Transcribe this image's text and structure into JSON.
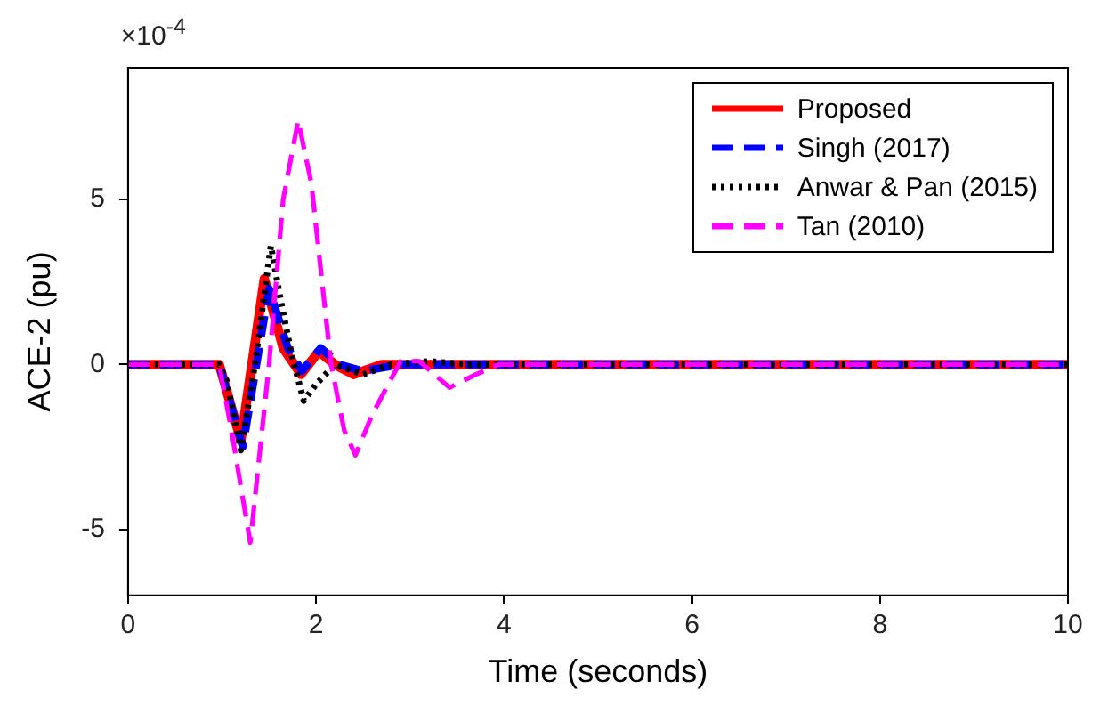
{
  "chart_data": {
    "type": "line",
    "xlabel": "Time (seconds)",
    "ylabel": "ACE-2 (pu)",
    "annotations": [
      "×10$^{-4}$"
    ],
    "xlim": [
      0,
      10
    ],
    "xticks": [
      0,
      2,
      4,
      6,
      8,
      10
    ],
    "ylim": [
      -7,
      9
    ],
    "yticks": [
      -5,
      0,
      5
    ],
    "grid": false,
    "legend": "top right",
    "marker": "none",
    "series": [
      {
        "name": "Proposed",
        "color": "#ff0000",
        "line_style": "solid",
        "x": [
          0,
          0.97,
          1.2,
          1.45,
          1.65,
          1.84,
          2.03,
          2.2,
          2.4,
          2.7,
          10
        ],
        "values": [
          0,
          0,
          -2.3,
          2.6,
          0.5,
          -0.3,
          0.4,
          0,
          -0.3,
          0,
          0
        ]
      },
      {
        "name": "Singh (2017)",
        "color": "#0000ff",
        "line_style": "dashed",
        "x": [
          0,
          0.97,
          1.22,
          1.5,
          1.7,
          1.85,
          2.05,
          2.25,
          2.5,
          2.9,
          10
        ],
        "values": [
          0,
          0,
          -2.5,
          2.3,
          0.5,
          -0.2,
          0.5,
          0,
          -0.2,
          0,
          0
        ]
      },
      {
        "name": "Anwar & Pan (2015)",
        "color": "#000000",
        "line_style": "dotted",
        "x": [
          0,
          0.97,
          1.05,
          1.2,
          1.35,
          1.52,
          1.62,
          1.74,
          1.87,
          2.0,
          2.2,
          2.5,
          2.8,
          3.2,
          3.6,
          10
        ],
        "values": [
          0,
          0,
          -0.5,
          -2.6,
          0,
          3.6,
          2,
          0.3,
          -1.1,
          -0.6,
          0,
          -0.3,
          0,
          0.1,
          0,
          0
        ]
      },
      {
        "name": "Tan (2010)",
        "color": "#ff00ff",
        "line_style": "dashed",
        "x": [
          0,
          0.97,
          1.1,
          1.3,
          1.5,
          1.65,
          1.81,
          1.95,
          2.16,
          2.3,
          2.42,
          2.6,
          2.9,
          3.1,
          3.42,
          3.7,
          3.94,
          10
        ],
        "values": [
          0,
          0,
          -2,
          -5.4,
          0,
          5,
          7.4,
          5.5,
          0,
          -2,
          -2.75,
          -1.5,
          0.1,
          0.1,
          -0.7,
          -0.3,
          0,
          0
        ]
      }
    ]
  }
}
